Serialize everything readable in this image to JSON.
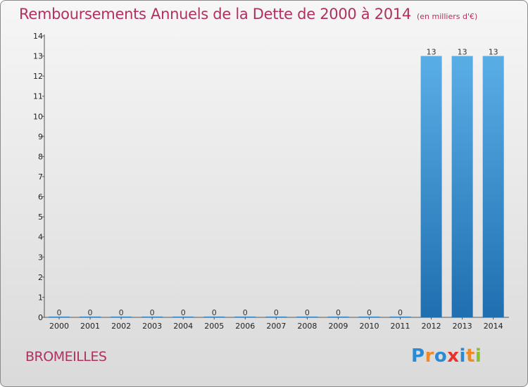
{
  "title": "Remboursements Annuels de la Dette de 2000 à 2014",
  "subtitle": "(en milliers d'€)",
  "commune": "BROMEILLES",
  "logo": {
    "letters": [
      "P",
      "r",
      "o",
      "x",
      "i",
      "t",
      "i"
    ],
    "colors": [
      "#2a8ad4",
      "#f08a24",
      "#2a8ad4",
      "#e8332a",
      "#2a8ad4",
      "#f08a24",
      "#8bbf2c"
    ]
  },
  "colors": {
    "bar_top": "#5aaee6",
    "bar_bottom": "#1f6fb0",
    "title": "#b03060"
  },
  "chart_data": {
    "type": "bar",
    "categories": [
      "2000",
      "2001",
      "2002",
      "2003",
      "2004",
      "2005",
      "2006",
      "2007",
      "2008",
      "2009",
      "2010",
      "2011",
      "2012",
      "2013",
      "2014"
    ],
    "values": [
      0,
      0,
      0,
      0,
      0,
      0,
      0,
      0,
      0,
      0,
      0,
      0,
      13,
      13,
      13
    ],
    "ylim": [
      0,
      14
    ],
    "yticks": [
      0,
      1,
      2,
      3,
      4,
      5,
      6,
      7,
      8,
      9,
      10,
      11,
      12,
      13,
      14
    ],
    "title": "Remboursements Annuels de la Dette de 2000 à 2014",
    "xlabel": "",
    "ylabel": ""
  }
}
